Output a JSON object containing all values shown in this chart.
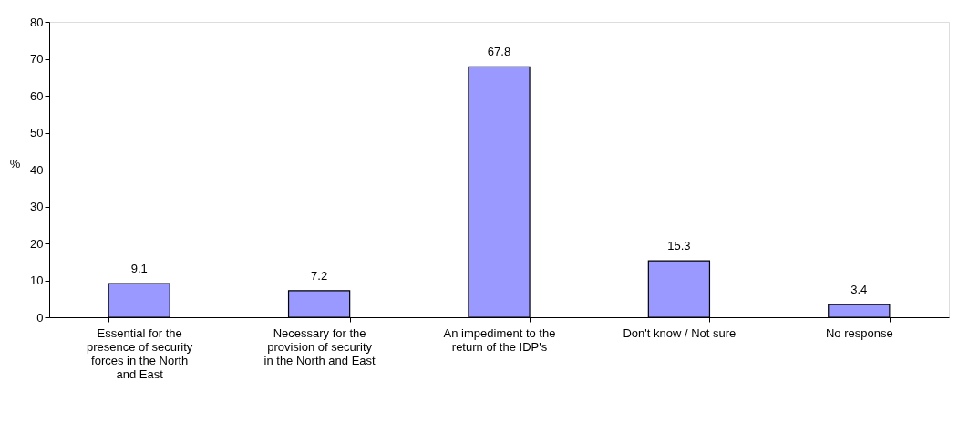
{
  "chart_data": {
    "type": "bar",
    "ylabel": "%",
    "categories": [
      "Essential for the presence of security forces in the North and East",
      "Necessary for the provision of security in the North and East",
      "An impediment to the return of the IDP's",
      "Don't know / Not sure",
      "No response"
    ],
    "values": [
      9.1,
      7.2,
      67.8,
      15.3,
      3.4
    ],
    "color": "#9999ff",
    "ylim": [
      0,
      80
    ],
    "yticks": [
      0,
      10,
      20,
      30,
      40,
      50,
      60,
      70,
      80
    ],
    "data_labels": true
  }
}
